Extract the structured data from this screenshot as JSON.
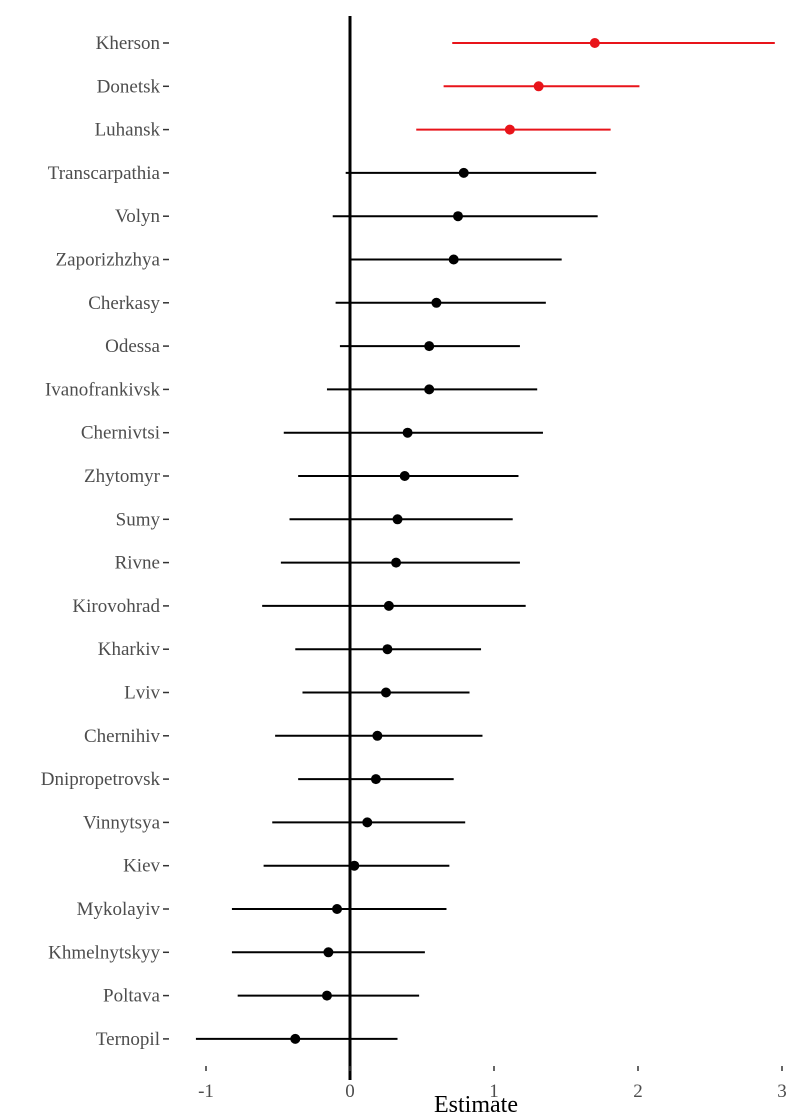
{
  "chart_data": {
    "type": "forest",
    "title": "",
    "xlabel": "Estimate",
    "ylabel": "",
    "xlim": [
      -1.12,
      3.0
    ],
    "x_ticks": [
      -1,
      0,
      1,
      2,
      3
    ],
    "x_tick_labels": [
      "-1",
      "0",
      "1",
      "2",
      "3"
    ],
    "reference_line": 0,
    "grid": false,
    "highlight_color": "#e8141a",
    "default_color": "#000000",
    "rows": [
      {
        "label": "Kherson",
        "estimate": 1.7,
        "lower": 0.71,
        "upper": 2.95,
        "highlight": true
      },
      {
        "label": "Donetsk",
        "estimate": 1.31,
        "lower": 0.65,
        "upper": 2.01,
        "highlight": true
      },
      {
        "label": "Luhansk",
        "estimate": 1.11,
        "lower": 0.46,
        "upper": 1.81,
        "highlight": true
      },
      {
        "label": "Transcarpathia",
        "estimate": 0.79,
        "lower": -0.03,
        "upper": 1.71,
        "highlight": false
      },
      {
        "label": "Volyn",
        "estimate": 0.75,
        "lower": -0.12,
        "upper": 1.72,
        "highlight": false
      },
      {
        "label": "Zaporizhzhya",
        "estimate": 0.72,
        "lower": 0.0,
        "upper": 1.47,
        "highlight": false
      },
      {
        "label": "Cherkasy",
        "estimate": 0.6,
        "lower": -0.1,
        "upper": 1.36,
        "highlight": false
      },
      {
        "label": "Odessa",
        "estimate": 0.55,
        "lower": -0.07,
        "upper": 1.18,
        "highlight": false
      },
      {
        "label": "Ivanofrankivsk",
        "estimate": 0.55,
        "lower": -0.16,
        "upper": 1.3,
        "highlight": false
      },
      {
        "label": "Chernivtsi",
        "estimate": 0.4,
        "lower": -0.46,
        "upper": 1.34,
        "highlight": false
      },
      {
        "label": "Zhytomyr",
        "estimate": 0.38,
        "lower": -0.36,
        "upper": 1.17,
        "highlight": false
      },
      {
        "label": "Sumy",
        "estimate": 0.33,
        "lower": -0.42,
        "upper": 1.13,
        "highlight": false
      },
      {
        "label": "Rivne",
        "estimate": 0.32,
        "lower": -0.48,
        "upper": 1.18,
        "highlight": false
      },
      {
        "label": "Kirovohrad",
        "estimate": 0.27,
        "lower": -0.61,
        "upper": 1.22,
        "highlight": false
      },
      {
        "label": "Kharkiv",
        "estimate": 0.26,
        "lower": -0.38,
        "upper": 0.91,
        "highlight": false
      },
      {
        "label": "Lviv",
        "estimate": 0.25,
        "lower": -0.33,
        "upper": 0.83,
        "highlight": false
      },
      {
        "label": "Chernihiv",
        "estimate": 0.19,
        "lower": -0.52,
        "upper": 0.92,
        "highlight": false
      },
      {
        "label": "Dnipropetrovsk",
        "estimate": 0.18,
        "lower": -0.36,
        "upper": 0.72,
        "highlight": false
      },
      {
        "label": "Vinnytsya",
        "estimate": 0.12,
        "lower": -0.54,
        "upper": 0.8,
        "highlight": false
      },
      {
        "label": "Kiev",
        "estimate": 0.03,
        "lower": -0.6,
        "upper": 0.69,
        "highlight": false
      },
      {
        "label": "Mykolayiv",
        "estimate": -0.09,
        "lower": -0.82,
        "upper": 0.67,
        "highlight": false
      },
      {
        "label": "Khmelnytskyy",
        "estimate": -0.15,
        "lower": -0.82,
        "upper": 0.52,
        "highlight": false
      },
      {
        "label": "Poltava",
        "estimate": -0.16,
        "lower": -0.78,
        "upper": 0.48,
        "highlight": false
      },
      {
        "label": "Ternopil",
        "estimate": -0.38,
        "lower": -1.07,
        "upper": 0.33,
        "highlight": false
      }
    ]
  }
}
